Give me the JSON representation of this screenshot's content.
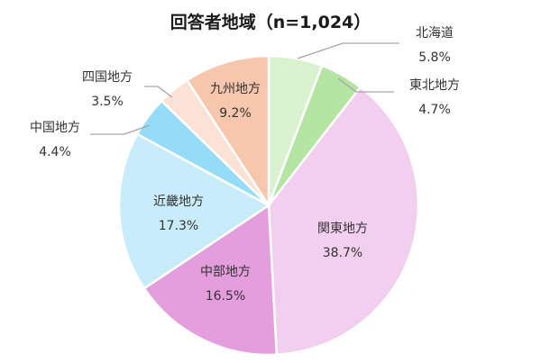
{
  "chart_data": {
    "type": "pie",
    "title": "回答者地域（n=1,024）",
    "start_angle_deg": 0,
    "direction": "clockwise",
    "slices": [
      {
        "label": "北海道",
        "value": 5.8,
        "value_text": "5.8%",
        "color": "#d9f2d0",
        "label_position": "outside"
      },
      {
        "label": "東北地方",
        "value": 4.7,
        "value_text": "4.7%",
        "color": "#b4e5a2",
        "label_position": "outside"
      },
      {
        "label": "関東地方",
        "value": 38.7,
        "value_text": "38.7%",
        "color": "#f2ceef",
        "label_position": "inside"
      },
      {
        "label": "中部地方",
        "value": 16.5,
        "value_text": "16.5%",
        "color": "#e59edd",
        "label_position": "inside"
      },
      {
        "label": "近畿地方",
        "value": 17.3,
        "value_text": "17.3%",
        "color": "#c9ecfa",
        "label_position": "inside"
      },
      {
        "label": "中国地方",
        "value": 4.4,
        "value_text": "4.4%",
        "color": "#94dcf8",
        "label_position": "outside"
      },
      {
        "label": "四国地方",
        "value": 3.5,
        "value_text": "3.5%",
        "color": "#fbe2d5",
        "label_position": "outside"
      },
      {
        "label": "九州地方",
        "value": 9.2,
        "value_text": "9.2%",
        "color": "#f6c6ad",
        "label_position": "inside"
      }
    ]
  }
}
